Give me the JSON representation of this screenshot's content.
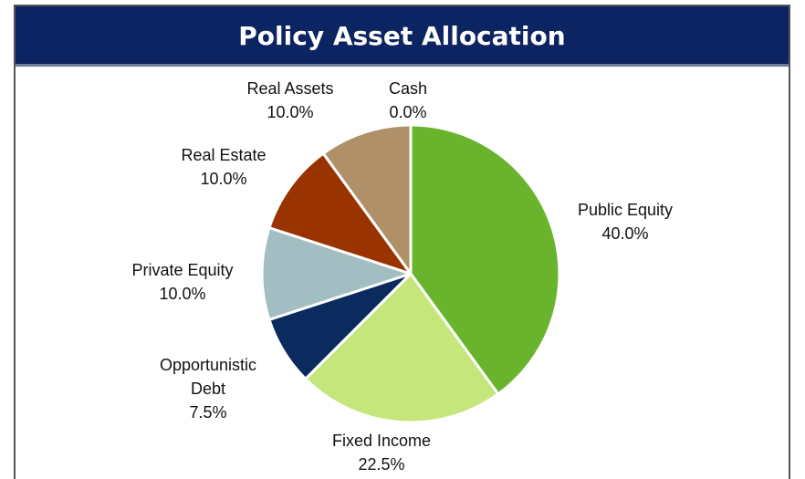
{
  "chart_data": {
    "type": "pie",
    "title": "Policy Asset Allocation",
    "categories": [
      "Public Equity",
      "Fixed Income",
      "Opportunistic Debt",
      "Private Equity",
      "Real Estate",
      "Real Assets",
      "Cash"
    ],
    "values": [
      40,
      22.5,
      7.5,
      10,
      10,
      10,
      0
    ],
    "value_labels": [
      "40.0%",
      "22.5%",
      "7.5%",
      "10.0%",
      "10.0%",
      "10.0%",
      "0.0%"
    ],
    "colors": [
      "#6ab42d",
      "#c5e67a",
      "#0b2a5e",
      "#a3bec3",
      "#993300",
      "#b09068",
      "#4f81bd"
    ]
  }
}
